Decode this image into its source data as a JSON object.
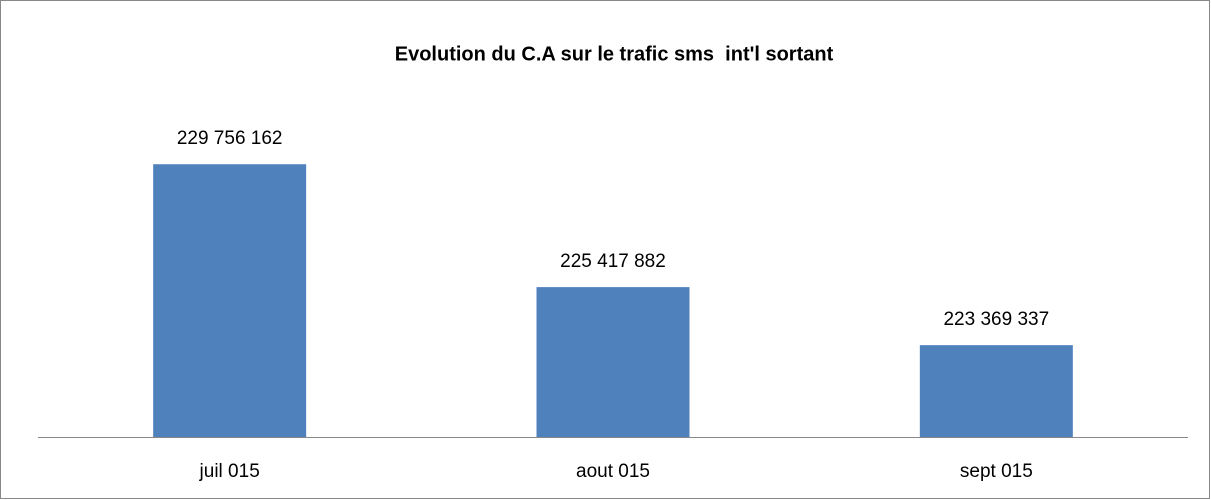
{
  "chart_data": {
    "type": "bar",
    "title": "Evolution du C.A sur le trafic sms  int'l sortant",
    "categories": [
      "juil 015",
      "aout 015",
      "sept 015"
    ],
    "values": [
      229756162,
      225417882,
      223369337
    ],
    "value_labels": [
      "229 756 162",
      "225 417 882",
      "223 369 337"
    ],
    "color": "#4f81bd",
    "ylim": [
      220127000,
      231000000
    ]
  }
}
